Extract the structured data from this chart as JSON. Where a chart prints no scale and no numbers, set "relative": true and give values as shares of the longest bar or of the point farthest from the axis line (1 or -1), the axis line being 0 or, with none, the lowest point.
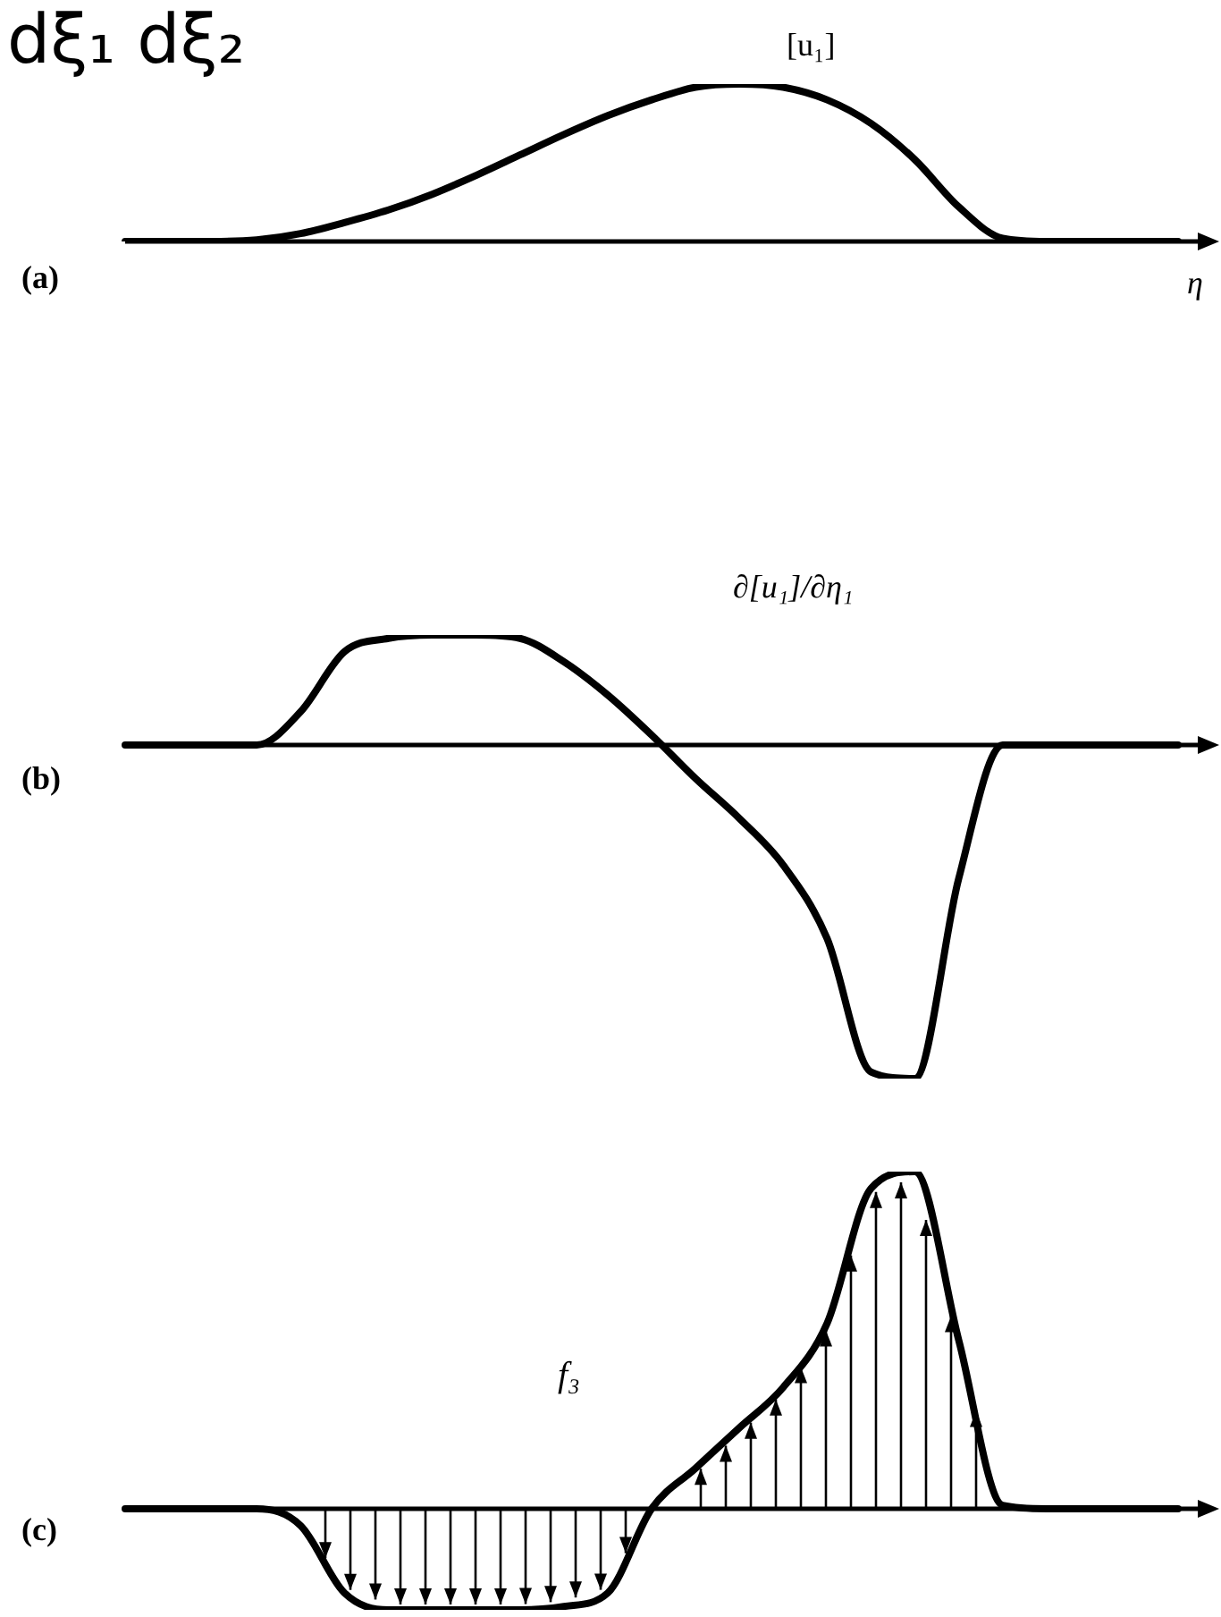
{
  "chart_data": [
    {
      "type": "line",
      "relative": true,
      "legend": false,
      "marker": "none",
      "annotations": [
        "dξ₁ dξ₂",
        "(a)"
      ],
      "ylabel": "[u₁]",
      "xlabel": "η",
      "categories": [
        null,
        null,
        null,
        null,
        null,
        null,
        null,
        null,
        null,
        null,
        null,
        null,
        null,
        null,
        null,
        null,
        null,
        null,
        null,
        null,
        null,
        null,
        null,
        null,
        null
      ],
      "series": [
        {
          "color": "#000000",
          "values": [
            0,
            0,
            0,
            0.01,
            0.05,
            0.12,
            0.2,
            0.3,
            0.42,
            0.55,
            0.68,
            0.8,
            0.9,
            0.98,
            1,
            0.98,
            0.9,
            0.75,
            0.52,
            0.22,
            0.02,
            0,
            0,
            0,
            0
          ]
        }
      ]
    },
    {
      "type": "line",
      "relative": true,
      "legend": false,
      "marker": "none",
      "annotations": [
        "(b)"
      ],
      "ylabel": "∂[u₁]/∂η₁",
      "categories": [
        null,
        null,
        null,
        null,
        null,
        null,
        null,
        null,
        null,
        null,
        null,
        null,
        null,
        null,
        null,
        null,
        null,
        null,
        null,
        null,
        null,
        null,
        null,
        null,
        null
      ],
      "series": [
        {
          "color": "#000000",
          "values": [
            0,
            0,
            0,
            0,
            0.1,
            0.28,
            0.32,
            0.33,
            0.33,
            0.32,
            0.25,
            0.15,
            0.03,
            -0.1,
            -0.22,
            -0.36,
            -0.58,
            -0.98,
            -1,
            -0.4,
            0,
            0,
            0,
            0,
            0
          ]
        }
      ]
    },
    {
      "type": "line",
      "relative": true,
      "legend": false,
      "marker": "none",
      "annotations": [
        "(c)"
      ],
      "ylabel": "f₃",
      "categories": [
        null,
        null,
        null,
        null,
        null,
        null,
        null,
        null,
        null,
        null,
        null,
        null,
        null,
        null,
        null,
        null,
        null,
        null,
        null,
        null,
        null,
        null,
        null,
        null,
        null
      ],
      "series": [
        {
          "color": "#000000",
          "values": [
            0,
            0,
            0,
            0,
            -0.05,
            -0.25,
            -0.3,
            -0.3,
            -0.3,
            -0.3,
            -0.29,
            -0.25,
            0,
            0.12,
            0.24,
            0.36,
            0.55,
            0.95,
            1,
            0.5,
            0.01,
            0,
            0,
            0,
            0
          ]
        }
      ]
    }
  ]
}
